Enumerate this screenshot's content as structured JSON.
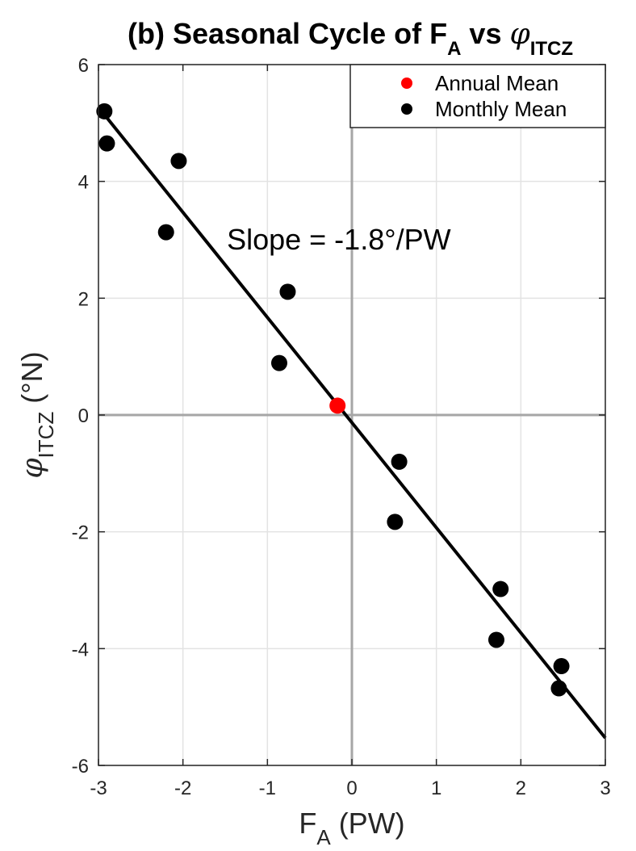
{
  "chart_data": {
    "type": "scatter",
    "title": {
      "prefix": "(b) Seasonal Cycle of F",
      "prefix_sub": "A",
      "middle": " vs ",
      "symbol": "φ",
      "symbol_sub": "ITCZ"
    },
    "xlabel": {
      "main": "F",
      "sub": "A",
      "unit": " (PW)"
    },
    "ylabel": {
      "symbol": "φ",
      "sub": "ITCZ",
      "unit": " (°N)"
    },
    "xlim": [
      -3,
      3
    ],
    "ylim": [
      -6,
      6
    ],
    "x_ticks": [
      -3,
      -2,
      -1,
      0,
      1,
      2,
      3
    ],
    "y_ticks": [
      -6,
      -4,
      -2,
      0,
      2,
      4,
      6
    ],
    "grid": true,
    "legend_position": "top-right",
    "series": [
      {
        "name": "Annual Mean",
        "color": "#ff0000",
        "points": [
          {
            "x": -0.17,
            "y": 0.16
          }
        ]
      },
      {
        "name": "Monthly Mean",
        "color": "#000000",
        "points": [
          {
            "x": -2.93,
            "y": 5.2
          },
          {
            "x": -2.9,
            "y": 4.65
          },
          {
            "x": -2.05,
            "y": 4.35
          },
          {
            "x": -2.2,
            "y": 3.13
          },
          {
            "x": -0.76,
            "y": 2.11
          },
          {
            "x": -0.86,
            "y": 0.89
          },
          {
            "x": 0.56,
            "y": -0.8
          },
          {
            "x": 0.51,
            "y": -1.83
          },
          {
            "x": 1.76,
            "y": -2.98
          },
          {
            "x": 1.71,
            "y": -3.85
          },
          {
            "x": 2.48,
            "y": -4.3
          },
          {
            "x": 2.45,
            "y": -4.68
          }
        ]
      }
    ],
    "fit_line": {
      "slope": -1.8,
      "intercept": -0.13,
      "x_range": [
        -3,
        3
      ],
      "color": "#000000"
    },
    "annotation": {
      "text": "Slope = -1.8°/PW",
      "x": -1.48,
      "y": 3.0
    }
  }
}
